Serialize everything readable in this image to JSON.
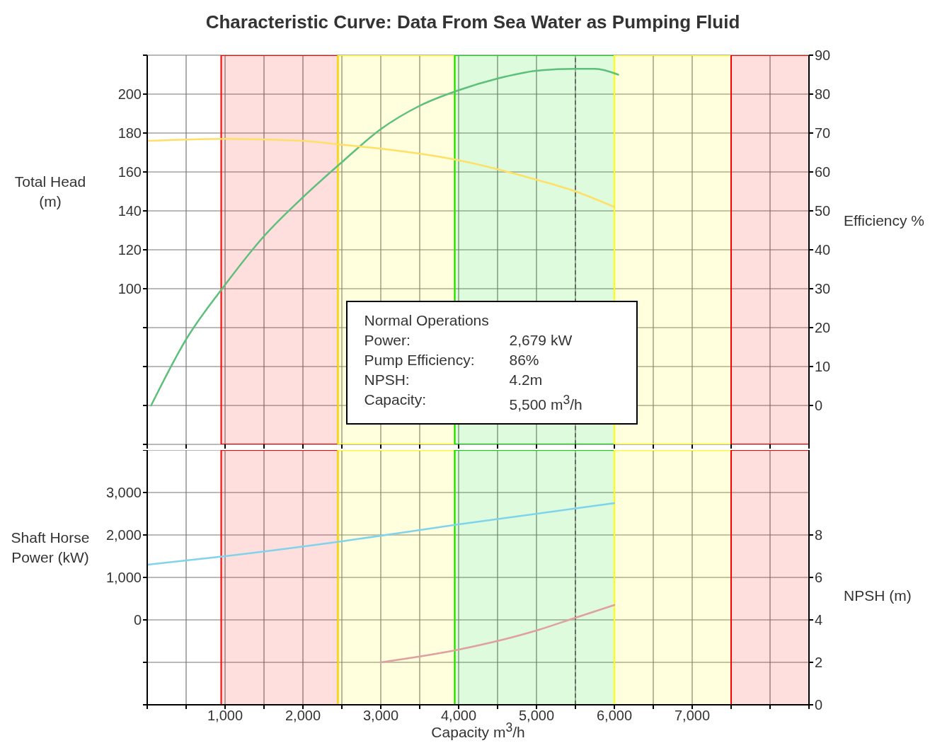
{
  "chart_data": [
    {
      "type": "line",
      "title": "Characteristic Curve: Data From Sea Water as Pumping Fluid",
      "ylabel": "Total Head (m)",
      "y2label": "Efficiency %",
      "xlim": [
        0,
        8500
      ],
      "xticks": [
        0,
        500,
        1000,
        1500,
        2000,
        2500,
        3000,
        3500,
        4000,
        4500,
        5000,
        5500,
        6000,
        6500,
        7000,
        7500,
        8000,
        8500
      ],
      "ylim": [
        20,
        220
      ],
      "yticks": [
        {
          "value": 20,
          "label": null
        },
        {
          "value": 40,
          "label": null
        },
        {
          "value": 60,
          "label": null
        },
        {
          "value": 80,
          "label": null
        },
        100,
        120,
        140,
        160,
        180,
        200,
        {
          "value": 220,
          "label": null
        }
      ],
      "y2lim": [
        -10,
        90
      ],
      "y2ticks": [
        0,
        10,
        20,
        30,
        40,
        50,
        60,
        70,
        80,
        90
      ],
      "tick_labels": "y",
      "grid": true,
      "series": [
        {
          "axis": "y2",
          "color": "#5cbf7a",
          "x": [
            50,
            500,
            1000,
            1500,
            2000,
            2500,
            3000,
            3500,
            4000,
            4500,
            5000,
            5500,
            5750,
            6050
          ],
          "values": [
            0,
            17,
            31,
            43.5,
            53.5,
            62.5,
            71,
            77,
            81,
            84,
            86,
            86.5,
            86.5,
            85
          ]
        },
        {
          "color": "#ffe066",
          "x": [
            0,
            1000,
            2000,
            2500,
            3000,
            4000,
            5000,
            5500,
            6000
          ],
          "values": [
            176,
            177,
            176,
            174,
            172,
            166,
            156,
            150,
            142
          ]
        }
      ],
      "bands": [
        {
          "axis": "x",
          "from": 950,
          "to": 2450,
          "color": "#ff0000"
        },
        {
          "axis": "x",
          "from": 2450,
          "to": 3950,
          "color": "#ffff00"
        },
        {
          "axis": "x",
          "from": 3950,
          "to": 6000,
          "color": "#00e000"
        },
        {
          "axis": "x",
          "from": 6000,
          "to": 7500,
          "color": "#ffff00"
        },
        {
          "axis": "x",
          "from": 7500,
          "to": 8500,
          "color": "#ff0000"
        }
      ],
      "ref_lines": [
        {
          "axis": "x",
          "value": 5500,
          "color": "#555555",
          "line_style": "dashed"
        }
      ],
      "annotations": [
        "Normal Operations",
        "Power:",
        "2,679 kW",
        "Pump Efficiency:",
        "86%",
        "NPSH:",
        "4.2m",
        "Capacity:",
        "5,500 m$^{3}$/h"
      ]
    },
    {
      "type": "line",
      "xlabel": "Capacity m$^{3}$/h",
      "ylabel": "Shaft Horse Power (kW)",
      "y2label": "NPSH (m)",
      "xlim": [
        0,
        8500
      ],
      "xticks": [
        {
          "value": 0,
          "label": null
        },
        {
          "value": 500,
          "label": null
        },
        {
          "value": 1000,
          "label": "1,000"
        },
        {
          "value": 1500,
          "label": null
        },
        {
          "value": 2000,
          "label": "2,000"
        },
        {
          "value": 2500,
          "label": null
        },
        {
          "value": 3000,
          "label": "3,000"
        },
        {
          "value": 3500,
          "label": null
        },
        {
          "value": 4000,
          "label": "4,000"
        },
        {
          "value": 4500,
          "label": null
        },
        {
          "value": 5000,
          "label": "5,000"
        },
        {
          "value": 5500,
          "label": null
        },
        {
          "value": 6000,
          "label": "6,000"
        },
        {
          "value": 6500,
          "label": null
        },
        {
          "value": 7000,
          "label": "7,000"
        },
        {
          "value": 7500,
          "label": null
        },
        {
          "value": 8000,
          "label": null
        },
        {
          "value": 8500,
          "label": null
        }
      ],
      "ylim": [
        -2000,
        4000
      ],
      "yticks": [
        {
          "value": -2000,
          "label": null
        },
        {
          "value": -1000,
          "label": null
        },
        {
          "value": 0,
          "label": "0"
        },
        {
          "value": 1000,
          "label": "1,000"
        },
        {
          "value": 2000,
          "label": "2,000"
        },
        {
          "value": 3000,
          "label": "3,000"
        },
        {
          "value": 4000,
          "label": null
        }
      ],
      "y2lim": [
        0,
        12
      ],
      "y2ticks": [
        0,
        2,
        4,
        6,
        8
      ],
      "grid": true,
      "series": [
        {
          "color": "#7fd4ec",
          "x": [
            0,
            1000,
            2500,
            4000,
            6000
          ],
          "values": [
            1300,
            1500,
            1850,
            2250,
            2750
          ]
        },
        {
          "axis": "y2",
          "color": "#e0a0a0",
          "x": [
            3000,
            4000,
            5000,
            5500,
            6000
          ],
          "values": [
            2,
            2.6,
            3.5,
            4.1,
            4.7
          ]
        }
      ],
      "bands": [
        {
          "axis": "x",
          "from": 950,
          "to": 2450,
          "color": "#ff0000"
        },
        {
          "axis": "x",
          "from": 2450,
          "to": 3950,
          "color": "#ffff00"
        },
        {
          "axis": "x",
          "from": 3950,
          "to": 6000,
          "color": "#00e000"
        },
        {
          "axis": "x",
          "from": 6000,
          "to": 7500,
          "color": "#ffff00"
        },
        {
          "axis": "x",
          "from": 7500,
          "to": 8500,
          "color": "#ff0000"
        }
      ],
      "ref_lines": [
        {
          "axis": "x",
          "value": 5500,
          "color": "#555555",
          "line_style": "dashed"
        }
      ]
    }
  ]
}
